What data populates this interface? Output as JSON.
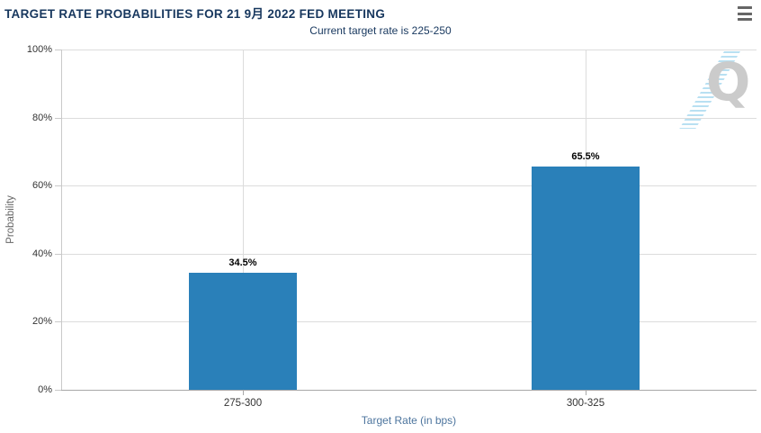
{
  "chart_data": {
    "type": "bar",
    "title": "TARGET RATE PROBABILITIES FOR 21 9月 2022 FED MEETING",
    "subtitle": "Current target rate is 225-250",
    "categories": [
      "275-300",
      "300-325"
    ],
    "values": [
      34.5,
      65.5
    ],
    "value_labels": [
      "34.5%",
      "65.5%"
    ],
    "xlabel": "Target Rate (in bps)",
    "ylabel": "Probability",
    "ylim": [
      0,
      100
    ],
    "y_tick_interval": 20,
    "y_tick_suffix": "%",
    "grid": true,
    "legend_position": "none",
    "bar_color": "#2a80b9"
  },
  "menu": {
    "icon": "hamburger"
  },
  "watermark": {
    "letter": "Q"
  },
  "colors": {
    "title": "#17375e",
    "subtitle": "#17375e",
    "bar": "#2a80b9",
    "x_axis_title": "#4d759e",
    "y_axis_title": "#666666",
    "tick_label": "#333333",
    "gridline": "#dcdcdc",
    "x_axis_line": "#a8a8a8",
    "y_axis_line": "#c9c9c9",
    "menu_icon": "#666666",
    "watermark_letter": "#cbcbcb",
    "watermark_hatch": "#89cbe9"
  }
}
